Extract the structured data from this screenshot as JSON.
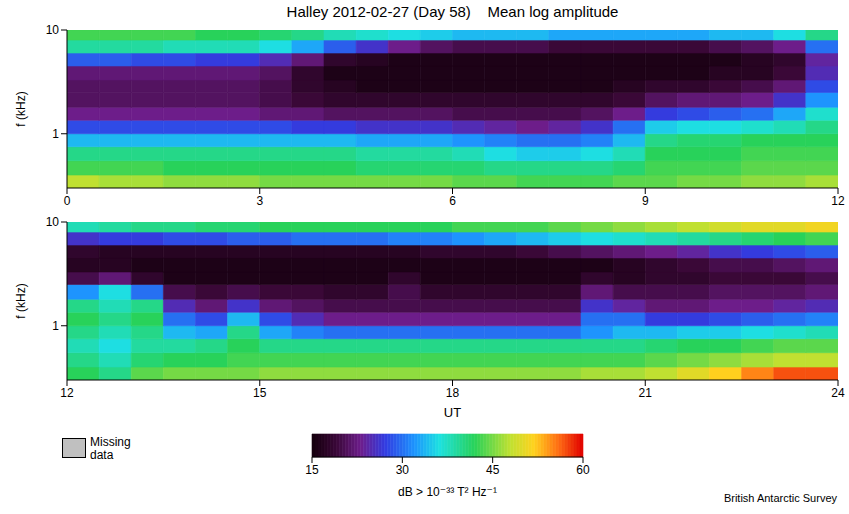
{
  "title": "Halley 2012-02-27 (Day 58)    Mean log amplitude",
  "chart_data": [
    {
      "type": "heatmap",
      "ylabel": "f (kHz)",
      "log": "y",
      "xlim": [
        0,
        12
      ],
      "xticks": [
        0,
        3,
        6,
        9,
        12
      ],
      "ylim": [
        0.3,
        10
      ],
      "yticks": [
        1,
        10
      ],
      "xbins": [
        0,
        0.5,
        1,
        1.5,
        2,
        2.5,
        3,
        3.5,
        4,
        4.5,
        5,
        5.5,
        6,
        6.5,
        7,
        7.5,
        8,
        8.5,
        9,
        9.5,
        10,
        10.5,
        11,
        11.5,
        12
      ],
      "ybins": [
        0.3,
        0.4,
        0.55,
        0.75,
        1,
        1.35,
        1.8,
        2.5,
        3.3,
        4.5,
        6,
        8,
        10
      ],
      "values": [
        [
          48,
          47,
          47,
          46,
          46,
          46,
          45,
          45,
          45,
          45,
          45,
          45,
          44,
          44,
          43,
          43,
          43,
          44,
          44,
          45,
          45,
          46,
          46,
          47
        ],
        [
          43,
          43,
          43,
          42,
          42,
          42,
          42,
          42,
          42,
          41,
          41,
          41,
          41,
          40,
          40,
          40,
          40,
          41,
          43,
          43,
          43,
          44,
          44,
          44
        ],
        [
          40,
          40,
          40,
          40,
          40,
          40,
          40,
          40,
          40,
          39,
          39,
          39,
          38,
          36,
          35,
          35,
          36,
          38,
          42,
          42,
          42,
          43,
          43,
          43
        ],
        [
          34,
          34,
          34,
          34,
          34,
          34,
          34,
          34,
          34,
          33,
          33,
          33,
          32,
          31,
          30,
          30,
          31,
          34,
          40,
          41,
          41,
          42,
          42,
          42
        ],
        [
          28,
          28,
          28,
          28,
          28,
          28,
          28,
          27,
          27,
          26,
          26,
          26,
          25,
          24,
          23,
          24,
          26,
          30,
          35,
          36,
          36,
          37,
          38,
          40
        ],
        [
          23,
          23,
          23,
          23,
          23,
          23,
          22,
          22,
          21,
          21,
          21,
          21,
          20,
          20,
          20,
          20,
          21,
          23,
          27,
          28,
          29,
          30,
          33,
          37
        ],
        [
          21,
          21,
          21,
          21,
          21,
          21,
          20,
          19,
          18,
          18,
          18,
          18,
          18,
          18,
          18,
          18,
          18,
          19,
          21,
          22,
          22,
          23,
          26,
          32
        ],
        [
          21,
          21,
          21,
          21,
          21,
          21,
          20,
          18,
          17,
          16,
          16,
          16,
          16,
          16,
          16,
          16,
          16,
          17,
          18,
          18,
          19,
          20,
          22,
          28
        ],
        [
          22,
          22,
          22,
          22,
          22,
          22,
          21,
          18,
          16,
          16,
          16,
          16,
          16,
          16,
          16,
          16,
          16,
          16,
          16,
          16,
          17,
          17,
          19,
          25
        ],
        [
          29,
          29,
          28,
          28,
          27,
          27,
          25,
          22,
          18,
          17,
          16,
          16,
          16,
          16,
          16,
          16,
          16,
          16,
          16,
          16,
          16,
          17,
          18,
          24
        ],
        [
          39,
          39,
          39,
          38,
          38,
          38,
          36,
          33,
          29,
          26,
          23,
          21,
          20,
          20,
          20,
          19,
          19,
          19,
          19,
          19,
          20,
          21,
          23,
          30
        ],
        [
          43,
          43,
          43,
          43,
          42,
          42,
          41,
          40,
          38,
          37,
          36,
          35,
          34,
          34,
          34,
          33,
          33,
          33,
          33,
          33,
          34,
          34,
          36,
          40
        ]
      ]
    },
    {
      "type": "heatmap",
      "ylabel": "f (kHz)",
      "xlabel": "UT",
      "log": "y",
      "xlim": [
        12,
        24
      ],
      "xticks": [
        12,
        15,
        18,
        21,
        24
      ],
      "ylim": [
        0.3,
        10
      ],
      "yticks": [
        1,
        10
      ],
      "xbins": [
        12,
        12.5,
        13,
        13.5,
        14,
        14.5,
        15,
        15.5,
        16,
        16.5,
        17,
        17.5,
        18,
        18.5,
        19,
        19.5,
        20,
        20.5,
        21,
        21.5,
        22,
        22.5,
        23,
        23.5,
        24
      ],
      "ybins": [
        0.3,
        0.4,
        0.55,
        0.75,
        1,
        1.35,
        1.8,
        2.5,
        3.3,
        4.5,
        6,
        8,
        10
      ],
      "values": [
        [
          42,
          40,
          44,
          45,
          45,
          45,
          46,
          46,
          46,
          46,
          46,
          46,
          46,
          46,
          46,
          46,
          47,
          47,
          48,
          50,
          52,
          55,
          57,
          57
        ],
        [
          40,
          38,
          41,
          42,
          42,
          43,
          43,
          43,
          43,
          43,
          43,
          43,
          43,
          43,
          43,
          43,
          43,
          43,
          44,
          45,
          46,
          47,
          48,
          48
        ],
        [
          38,
          36,
          39,
          39,
          40,
          42,
          40,
          40,
          40,
          40,
          40,
          40,
          40,
          40,
          40,
          40,
          40,
          40,
          41,
          42,
          42,
          43,
          44,
          44
        ],
        [
          40,
          38,
          40,
          34,
          33,
          40,
          33,
          31,
          30,
          30,
          30,
          30,
          30,
          30,
          30,
          30,
          32,
          34,
          34,
          35,
          35,
          36,
          37,
          38
        ],
        [
          42,
          40,
          42,
          30,
          28,
          34,
          28,
          25,
          23,
          23,
          23,
          23,
          23,
          23,
          23,
          23,
          30,
          30,
          27,
          27,
          28,
          29,
          30,
          31
        ],
        [
          40,
          38,
          40,
          25,
          22,
          26,
          22,
          21,
          20,
          20,
          20,
          20,
          20,
          20,
          20,
          20,
          26,
          24,
          22,
          22,
          23,
          23,
          24,
          25
        ],
        [
          32,
          36,
          30,
          20,
          19,
          20,
          19,
          19,
          18,
          18,
          20,
          18,
          18,
          18,
          18,
          18,
          22,
          20,
          20,
          20,
          21,
          21,
          21,
          22
        ],
        [
          20,
          22,
          18,
          16,
          16,
          16,
          16,
          16,
          16,
          16,
          18,
          16,
          16,
          16,
          16,
          16,
          18,
          17,
          18,
          18,
          19,
          19,
          19,
          20
        ],
        [
          17,
          17,
          16,
          16,
          16,
          16,
          16,
          16,
          16,
          16,
          16,
          16,
          16,
          16,
          16,
          16,
          16,
          17,
          18,
          19,
          20,
          20,
          21,
          22
        ],
        [
          18,
          17,
          17,
          17,
          17,
          17,
          17,
          17,
          17,
          17,
          17,
          18,
          18,
          18,
          19,
          20,
          21,
          22,
          23,
          24,
          26,
          27,
          28,
          29
        ],
        [
          26,
          27,
          27,
          28,
          28,
          29,
          29,
          30,
          30,
          30,
          31,
          31,
          32,
          33,
          34,
          35,
          36,
          37,
          38,
          39,
          40,
          41,
          42,
          43
        ],
        [
          38,
          39,
          40,
          40,
          41,
          41,
          42,
          42,
          42,
          42,
          42,
          42,
          43,
          43,
          43,
          44,
          45,
          46,
          47,
          48,
          49,
          50,
          50,
          51
        ]
      ]
    }
  ],
  "colorbar": {
    "range": [
      15,
      60
    ],
    "ticks": [
      15,
      30,
      45,
      60
    ],
    "label": "dB > 10⁻³³ T² Hz⁻¹"
  },
  "missing_data_label": "Missing data",
  "credit": "British Antarctic Survey"
}
